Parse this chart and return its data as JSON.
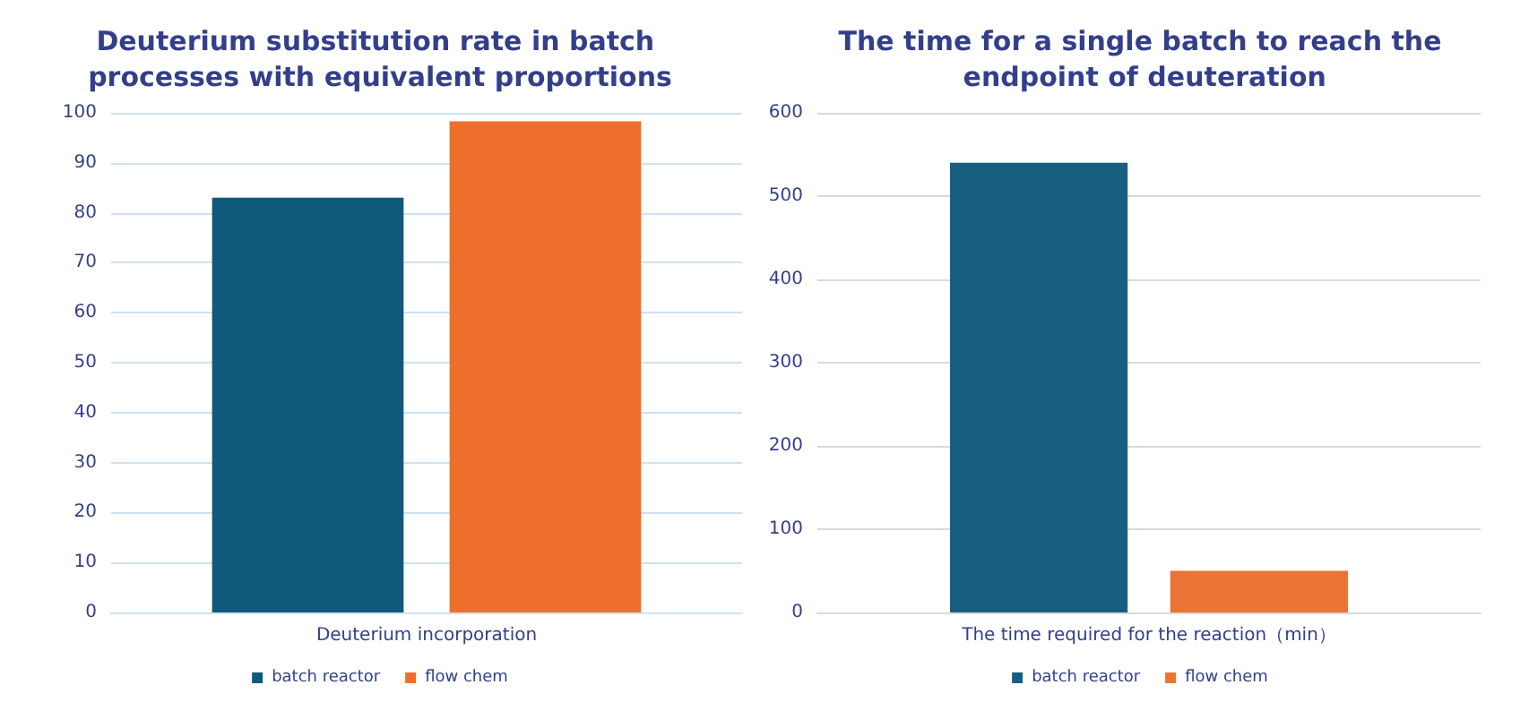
{
  "chart_data": [
    {
      "type": "bar",
      "title": "Deuterium substitution rate in batch processes with equivalent proportions",
      "categories": [
        "Deuterium incorporation"
      ],
      "series": [
        {
          "name": "batch reactor",
          "color": "#0f5a7c",
          "values": [
            83
          ]
        },
        {
          "name": "flow chem",
          "color": "#ee6f2b",
          "values": [
            98.3
          ]
        }
      ],
      "ylim": [
        0,
        100
      ],
      "yticks": [
        0,
        10,
        20,
        30,
        40,
        50,
        60,
        70,
        80,
        90,
        100
      ],
      "grid": "y",
      "legend": "bottom"
    },
    {
      "type": "bar",
      "title": "The time for a single batch to reach the endpoint of deuteration",
      "categories": [
        "The time required for the reaction（min）"
      ],
      "series": [
        {
          "name": "batch reactor",
          "color": "#175f80",
          "values": [
            540
          ]
        },
        {
          "name": "flow chem",
          "color": "#e97433",
          "values": [
            50
          ]
        }
      ],
      "ylim": [
        0,
        600
      ],
      "yticks": [
        0,
        100,
        200,
        300,
        400,
        500,
        600
      ],
      "grid": "y",
      "legend": "bottom"
    }
  ]
}
